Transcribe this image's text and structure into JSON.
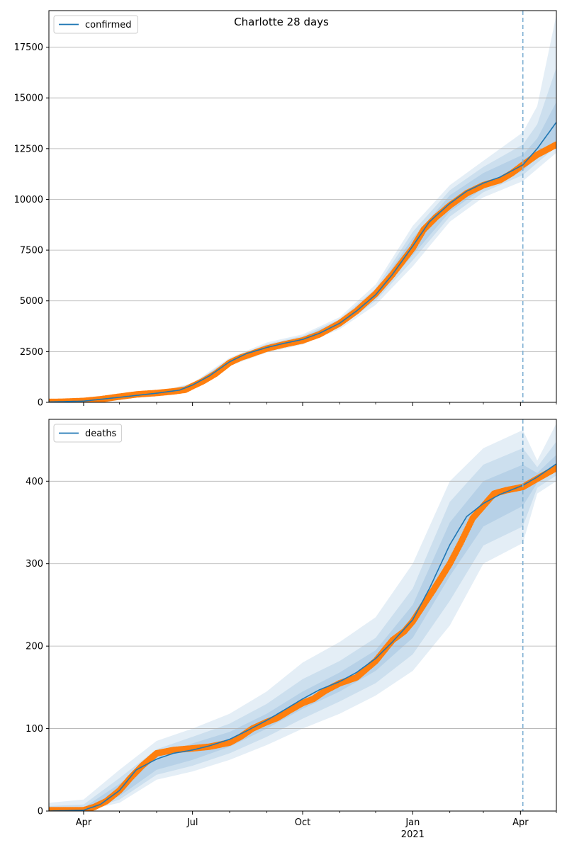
{
  "figure": {
    "title": "Charlotte 28 days",
    "forecast_start": "2021-04-03"
  },
  "style": {
    "line_color": "#1f77b4",
    "marker_color": "#ff7f0e",
    "band_color": "#1f77b4",
    "vline_color": "#7fb0d3",
    "grid_color": "#b0b0b0"
  },
  "x_axis": {
    "range": [
      "2020-03-03",
      "2021-05-01"
    ],
    "major_ticks": [
      {
        "date": "2020-04-01",
        "label": "Apr"
      },
      {
        "date": "2020-07-01",
        "label": "Jul"
      },
      {
        "date": "2020-10-01",
        "label": "Oct"
      },
      {
        "date": "2021-01-01",
        "label": "Jan"
      },
      {
        "date": "2021-04-01",
        "label": "Apr"
      }
    ],
    "year_label": {
      "date": "2021-01-01",
      "label": "2021"
    },
    "minor_ticks": [
      "2020-05-01",
      "2020-06-01",
      "2020-08-01",
      "2020-09-01",
      "2020-11-01",
      "2020-12-01",
      "2021-02-01",
      "2021-03-01",
      "2021-05-01"
    ]
  },
  "chart_data": [
    {
      "type": "line",
      "title": "Charlotte 28 days",
      "legend": "confirmed",
      "legend_position": "top-left",
      "grid": "horizontal",
      "ylim": [
        0,
        19300
      ],
      "yticks": [
        0,
        2500,
        5000,
        7500,
        10000,
        12500,
        15000,
        17500
      ],
      "ytick_labels": [
        "0",
        "2500",
        "5000",
        "7500",
        "10000",
        "12500",
        "15000",
        "17500"
      ],
      "model_line": {
        "name": "confirmed",
        "x": [
          "2020-03-03",
          "2020-04-01",
          "2020-05-01",
          "2020-06-01",
          "2020-06-20",
          "2020-07-01",
          "2020-07-15",
          "2020-08-01",
          "2020-08-15",
          "2020-09-01",
          "2020-09-15",
          "2020-10-01",
          "2020-10-15",
          "2020-11-01",
          "2020-11-15",
          "2020-12-01",
          "2020-12-15",
          "2021-01-01",
          "2021-01-15",
          "2021-02-01",
          "2021-02-15",
          "2021-03-01",
          "2021-03-15",
          "2021-04-03",
          "2021-04-15",
          "2021-05-01"
        ],
        "y": [
          20,
          60,
          250,
          450,
          600,
          850,
          1300,
          2000,
          2400,
          2700,
          2900,
          3100,
          3400,
          3900,
          4500,
          5300,
          6300,
          7700,
          8900,
          9800,
          10400,
          10800,
          11100,
          11700,
          12500,
          13800
        ]
      },
      "observed": {
        "x": [
          "2020-03-03",
          "2020-03-15",
          "2020-04-01",
          "2020-04-15",
          "2020-05-01",
          "2020-05-15",
          "2020-06-01",
          "2020-06-15",
          "2020-06-25",
          "2020-07-01",
          "2020-07-10",
          "2020-07-20",
          "2020-08-01",
          "2020-08-10",
          "2020-08-20",
          "2020-09-01",
          "2020-09-15",
          "2020-10-01",
          "2020-10-15",
          "2020-11-01",
          "2020-11-15",
          "2020-12-01",
          "2020-12-15",
          "2021-01-01",
          "2021-01-10",
          "2021-01-20",
          "2021-02-01",
          "2021-02-15",
          "2021-03-01",
          "2021-03-15",
          "2021-03-25",
          "2021-04-03",
          "2021-04-15",
          "2021-05-01"
        ],
        "y": [
          20,
          30,
          70,
          150,
          280,
          390,
          460,
          540,
          620,
          800,
          1050,
          1400,
          1950,
          2200,
          2400,
          2650,
          2850,
          3050,
          3350,
          3900,
          4500,
          5350,
          6300,
          7600,
          8500,
          9100,
          9700,
          10300,
          10700,
          10950,
          11300,
          11700,
          12200,
          12700
        ]
      },
      "bands": [
        {
          "x": [
            "2020-03-03",
            "2020-06-01",
            "2020-07-01",
            "2020-08-01",
            "2020-09-01",
            "2020-10-01",
            "2020-11-01",
            "2020-12-01",
            "2021-01-01",
            "2021-02-01",
            "2021-03-01",
            "2021-04-03",
            "2021-04-15",
            "2021-05-01"
          ],
          "lower": [
            0,
            390,
            760,
            1800,
            2450,
            2850,
            3600,
            4800,
            6700,
            8900,
            10100,
            10900,
            11500,
            12300
          ],
          "upper": [
            60,
            520,
            950,
            2200,
            2950,
            3350,
            4200,
            5800,
            8700,
            10700,
            11900,
            13300,
            14600,
            19100
          ]
        },
        {
          "x": [
            "2020-03-03",
            "2020-06-01",
            "2020-07-01",
            "2020-08-01",
            "2020-09-01",
            "2020-10-01",
            "2020-11-01",
            "2020-12-01",
            "2021-01-01",
            "2021-02-01",
            "2021-03-01",
            "2021-04-03",
            "2021-04-15",
            "2021-05-01"
          ],
          "lower": [
            10,
            410,
            790,
            1860,
            2530,
            2930,
            3700,
            5000,
            7000,
            9150,
            10350,
            11200,
            11800,
            12600
          ],
          "upper": [
            40,
            490,
            910,
            2130,
            2870,
            3270,
            4100,
            5600,
            8400,
            10450,
            11600,
            12700,
            13700,
            16500
          ]
        },
        {
          "x": [
            "2020-03-03",
            "2020-06-01",
            "2020-07-01",
            "2020-08-01",
            "2020-09-01",
            "2020-10-01",
            "2020-11-01",
            "2020-12-01",
            "2021-01-01",
            "2021-02-01",
            "2021-03-01",
            "2021-04-03",
            "2021-04-15",
            "2021-05-01"
          ],
          "lower": [
            15,
            430,
            820,
            1920,
            2600,
            3000,
            3780,
            5150,
            7250,
            9400,
            10550,
            11400,
            12100,
            12900
          ],
          "upper": [
            30,
            470,
            880,
            2080,
            2800,
            3200,
            4020,
            5450,
            8100,
            10200,
            11300,
            12200,
            13000,
            14800
          ]
        }
      ]
    },
    {
      "type": "line",
      "legend": "deaths",
      "legend_position": "top-left",
      "grid": "horizontal",
      "ylim": [
        0,
        475
      ],
      "yticks": [
        0,
        100,
        200,
        300,
        400
      ],
      "ytick_labels": [
        "0",
        "100",
        "200",
        "300",
        "400"
      ],
      "model_line": {
        "name": "deaths",
        "x": [
          "2020-03-03",
          "2020-04-01",
          "2020-04-15",
          "2020-05-01",
          "2020-05-15",
          "2020-06-01",
          "2020-06-15",
          "2020-07-01",
          "2020-07-15",
          "2020-08-01",
          "2020-08-15",
          "2020-09-01",
          "2020-09-15",
          "2020-10-01",
          "2020-10-15",
          "2020-11-01",
          "2020-11-15",
          "2020-12-01",
          "2020-12-15",
          "2021-01-01",
          "2021-01-15",
          "2021-02-01",
          "2021-02-15",
          "2021-03-01",
          "2021-03-15",
          "2021-04-03",
          "2021-04-15",
          "2021-05-01"
        ],
        "y": [
          0,
          1,
          8,
          25,
          50,
          63,
          70,
          74,
          79,
          87,
          97,
          110,
          122,
          136,
          147,
          157,
          168,
          185,
          205,
          232,
          270,
          323,
          357,
          373,
          384,
          395,
          405,
          421
        ]
      },
      "observed": {
        "x": [
          "2020-03-03",
          "2020-03-20",
          "2020-04-01",
          "2020-04-10",
          "2020-04-20",
          "2020-05-01",
          "2020-05-10",
          "2020-05-20",
          "2020-06-01",
          "2020-06-15",
          "2020-07-01",
          "2020-07-15",
          "2020-08-01",
          "2020-08-10",
          "2020-08-20",
          "2020-09-01",
          "2020-09-10",
          "2020-09-20",
          "2020-10-01",
          "2020-10-10",
          "2020-10-20",
          "2020-11-01",
          "2020-11-15",
          "2020-12-01",
          "2020-12-15",
          "2020-12-25",
          "2021-01-01",
          "2021-01-10",
          "2021-01-20",
          "2021-02-01",
          "2021-02-10",
          "2021-02-20",
          "2021-03-01",
          "2021-03-10",
          "2021-03-20",
          "2021-04-03",
          "2021-04-15",
          "2021-05-01"
        ],
        "y": [
          1,
          1,
          1,
          5,
          12,
          25,
          40,
          55,
          70,
          74,
          76,
          78,
          83,
          90,
          100,
          108,
          113,
          122,
          131,
          136,
          146,
          155,
          162,
          182,
          207,
          218,
          230,
          250,
          272,
          300,
          325,
          355,
          370,
          385,
          389,
          393,
          403,
          416
        ]
      },
      "bands": [
        {
          "x": [
            "2020-03-03",
            "2020-04-01",
            "2020-05-01",
            "2020-06-01",
            "2020-07-01",
            "2020-08-01",
            "2020-09-01",
            "2020-10-01",
            "2020-11-01",
            "2020-12-01",
            "2021-01-01",
            "2021-02-01",
            "2021-03-01",
            "2021-04-03",
            "2021-04-15",
            "2021-05-01"
          ],
          "lower": [
            0,
            0,
            10,
            38,
            48,
            62,
            80,
            100,
            118,
            140,
            170,
            225,
            300,
            325,
            385,
            400
          ],
          "upper": [
            10,
            14,
            50,
            85,
            100,
            118,
            145,
            180,
            205,
            235,
            300,
            400,
            440,
            462,
            425,
            470
          ]
        },
        {
          "x": [
            "2020-03-03",
            "2020-04-01",
            "2020-05-01",
            "2020-06-01",
            "2020-07-01",
            "2020-08-01",
            "2020-09-01",
            "2020-10-01",
            "2020-11-01",
            "2020-12-01",
            "2021-01-01",
            "2021-02-01",
            "2021-03-01",
            "2021-04-03",
            "2021-04-15",
            "2021-05-01"
          ],
          "lower": [
            0,
            0,
            14,
            44,
            55,
            70,
            90,
            112,
            133,
            155,
            190,
            255,
            322,
            345,
            392,
            407
          ],
          "upper": [
            6,
            8,
            40,
            75,
            90,
            106,
            130,
            160,
            182,
            210,
            270,
            375,
            420,
            440,
            417,
            448
          ]
        },
        {
          "x": [
            "2020-03-03",
            "2020-04-01",
            "2020-05-01",
            "2020-06-01",
            "2020-07-01",
            "2020-08-01",
            "2020-09-01",
            "2020-10-01",
            "2020-11-01",
            "2020-12-01",
            "2021-01-01",
            "2021-02-01",
            "2021-03-01",
            "2021-04-03",
            "2021-04-15",
            "2021-05-01"
          ],
          "lower": [
            0,
            0,
            18,
            50,
            62,
            78,
            100,
            124,
            145,
            170,
            210,
            285,
            345,
            370,
            398,
            413
          ],
          "upper": [
            3,
            4,
            33,
            67,
            82,
            96,
            118,
            145,
            168,
            195,
            250,
            350,
            400,
            420,
            410,
            432
          ]
        }
      ]
    }
  ]
}
